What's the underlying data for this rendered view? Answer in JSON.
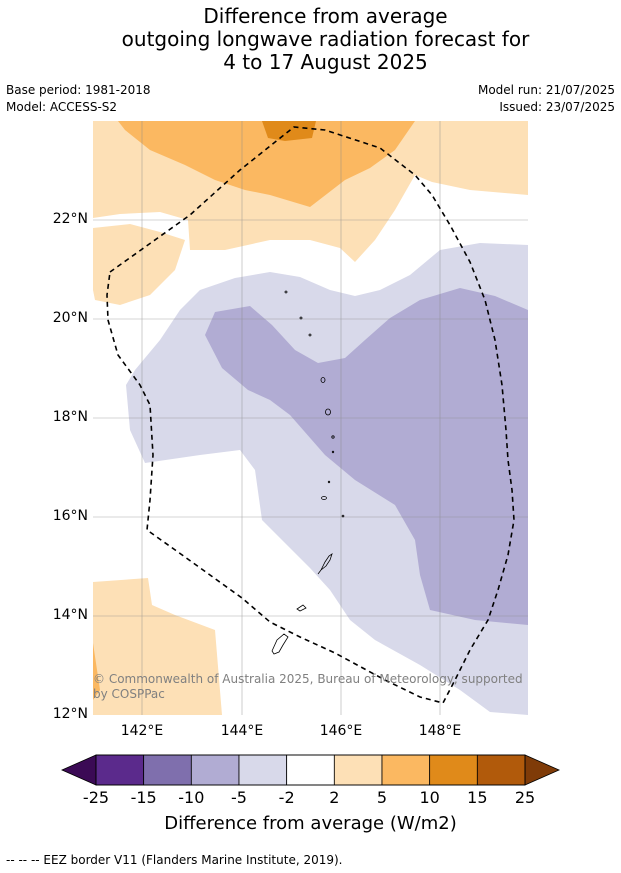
{
  "title_lines": [
    "Difference from average",
    "outgoing longwave radiation forecast for",
    "4 to 17 August 2025"
  ],
  "meta": {
    "base_period": "Base period: 1981-2018",
    "model": "Model: ACCESS-S2",
    "model_run": "Model run: 21/07/2025",
    "issued": "Issued: 23/07/2025"
  },
  "map": {
    "lat_labels": [
      "22°N",
      "20°N",
      "18°N",
      "16°N",
      "14°N",
      "12°N"
    ],
    "lon_labels": [
      "142°E",
      "144°E",
      "146°E",
      "148°E"
    ],
    "copyright": "© Commonwealth of Australia 2025, Bureau of Meteorology, supported by COSPPac"
  },
  "colorbar": {
    "ticks": [
      "-25",
      "-15",
      "-10",
      "-5",
      "-2",
      "2",
      "5",
      "10",
      "15",
      "25"
    ],
    "colors": [
      "#5b2a8c",
      "#7f6fad",
      "#b1acd3",
      "#d8d9ea",
      "#ffffff",
      "#fde0b6",
      "#fbb861",
      "#e08a1a",
      "#b15a0b"
    ],
    "under_color": "#3b0a55",
    "over_color": "#7f3b08",
    "title": "Difference from average (W/m2)"
  },
  "footnote": "-- -- -- EEZ border V11 (Flanders Marine Institute, 2019)."
}
